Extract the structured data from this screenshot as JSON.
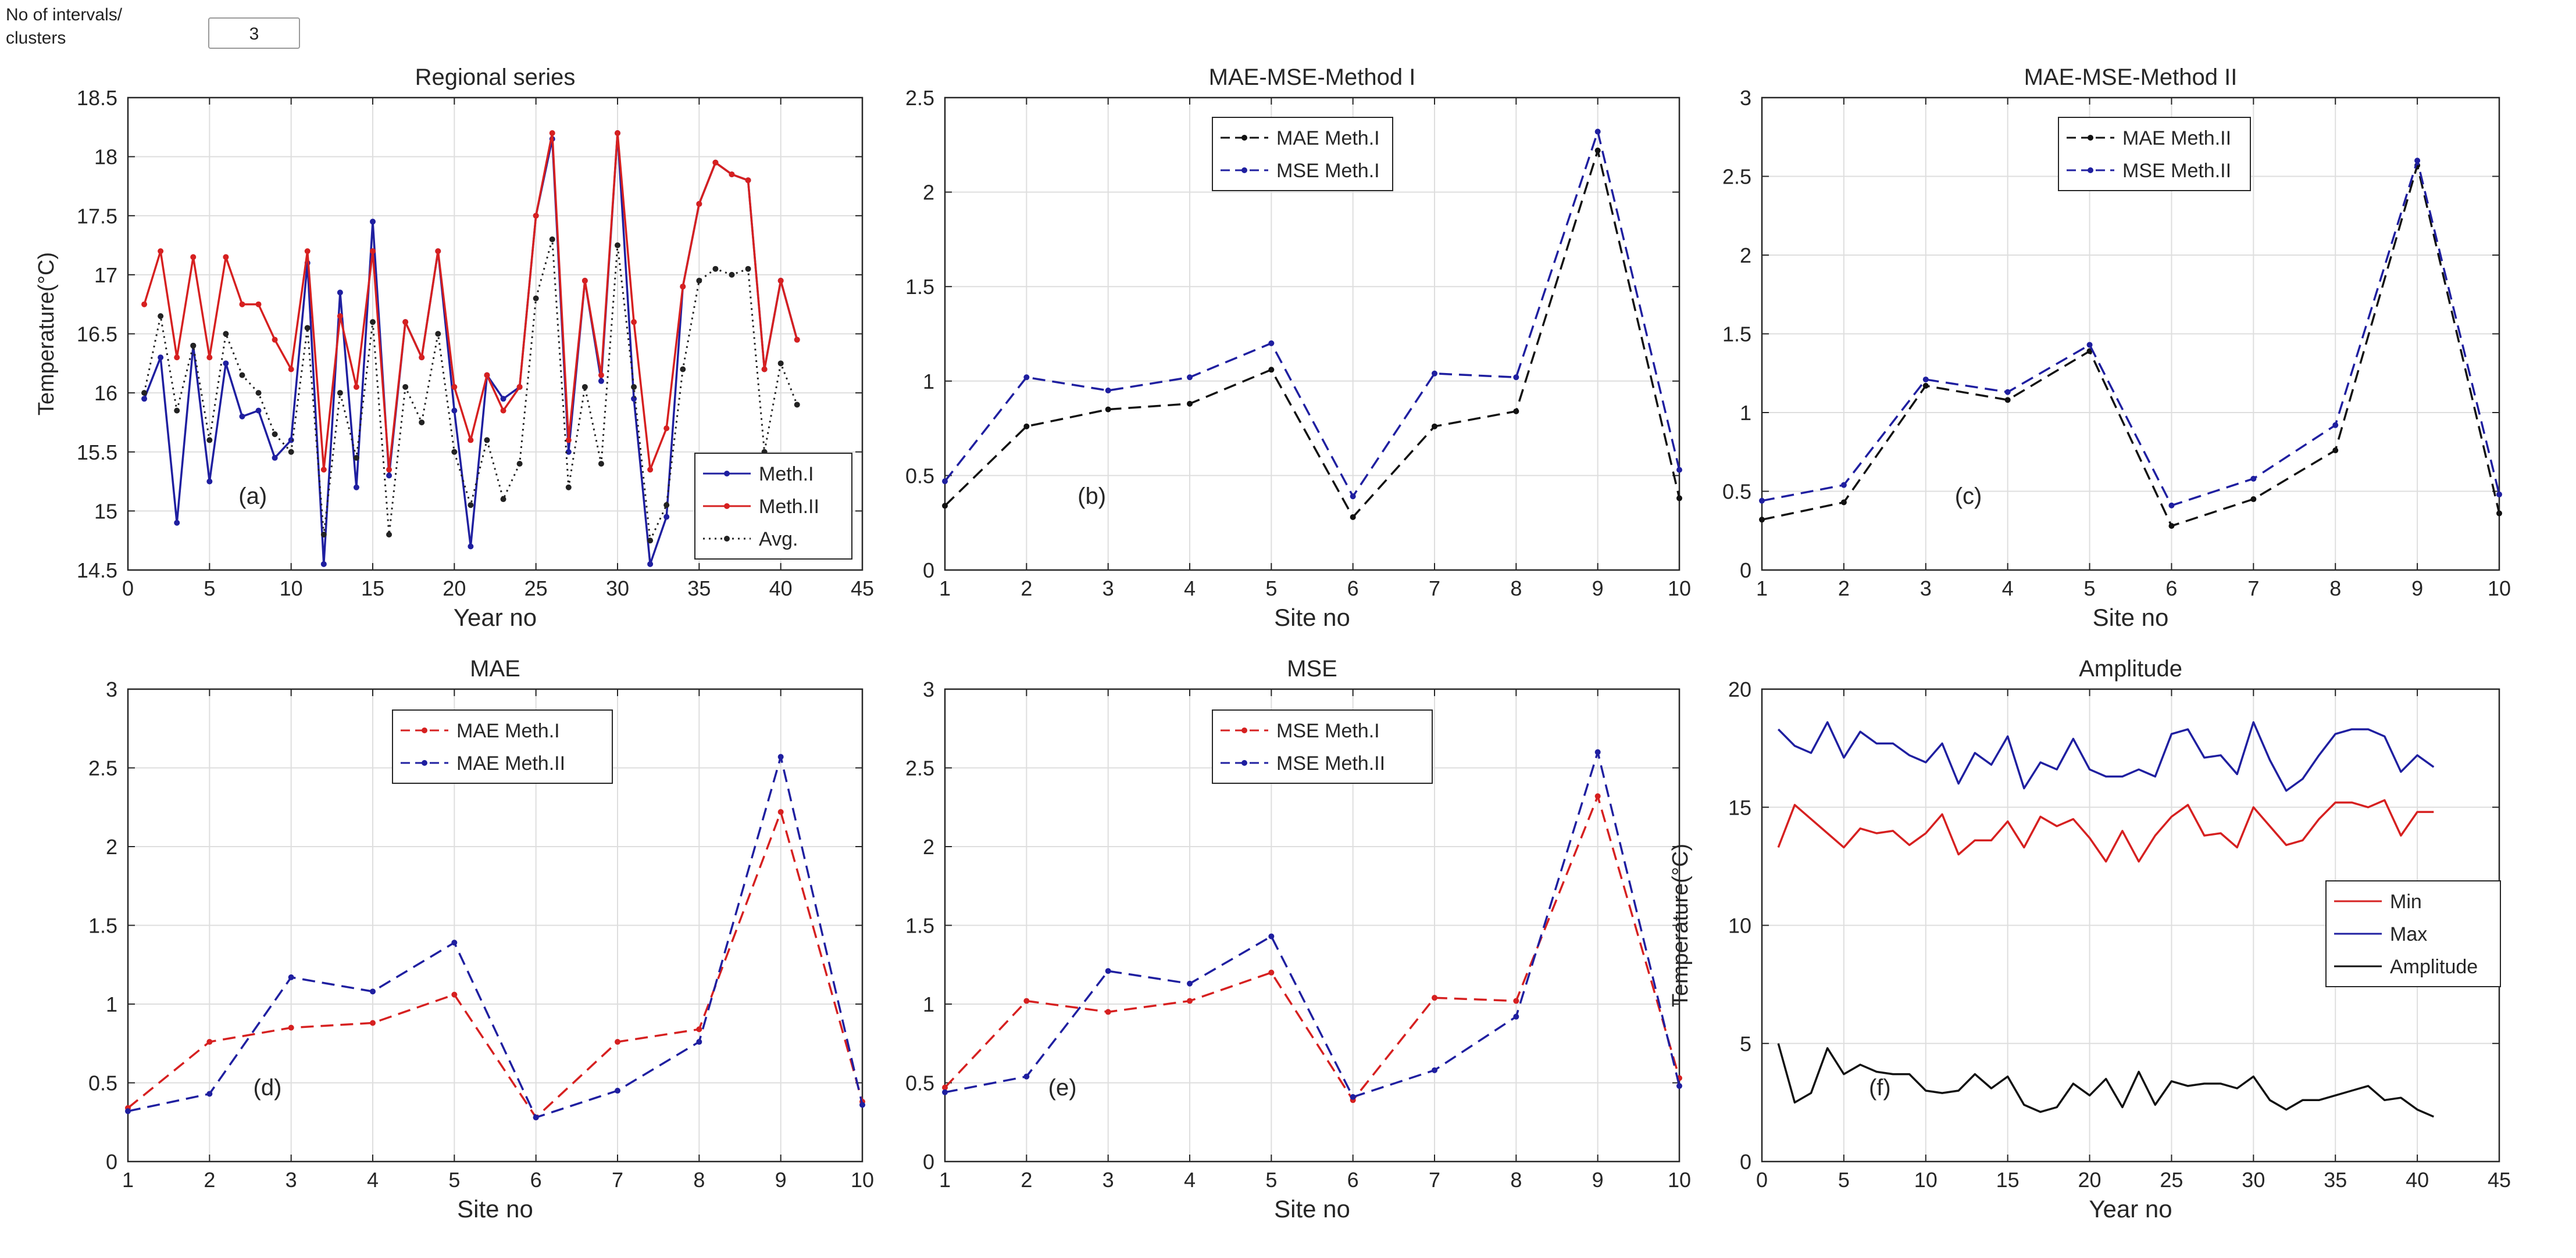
{
  "control": {
    "label": "No of intervals/\nclusters",
    "value": "3"
  },
  "chart_data": [
    {
      "id": "a",
      "type": "line",
      "title": "Regional series",
      "panel_label": "(a)",
      "xlabel": "Year no",
      "ylabel": "Temperature(°C)",
      "xlim": [
        0,
        45
      ],
      "ylim": [
        14.5,
        18.5
      ],
      "xticks": [
        0,
        5,
        10,
        15,
        20,
        25,
        30,
        35,
        40,
        45
      ],
      "yticks": [
        14.5,
        15,
        15.5,
        16,
        16.5,
        17,
        17.5,
        18,
        18.5
      ],
      "legend": {
        "position": "bottom-right",
        "entries": [
          "Meth.I",
          "Meth.II",
          "Avg."
        ]
      },
      "series": [
        {
          "name": "Meth.I",
          "color": "#1f1fa0",
          "dash": "solid",
          "x": [
            1,
            2,
            3,
            4,
            5,
            6,
            7,
            8,
            9,
            10,
            11,
            12,
            13,
            14,
            15,
            16,
            17,
            18,
            19,
            20,
            21,
            22,
            23,
            24,
            25,
            26,
            27,
            28,
            29,
            30,
            31,
            32,
            33,
            34,
            35,
            36,
            37,
            38,
            39,
            40,
            41
          ],
          "values": [
            15.95,
            16.3,
            14.9,
            16.4,
            15.25,
            16.25,
            15.8,
            15.85,
            15.45,
            15.6,
            17.1,
            14.55,
            16.85,
            15.2,
            17.45,
            15.3,
            16.6,
            16.3,
            17.2,
            15.85,
            14.7,
            16.15,
            15.95,
            16.05,
            17.5,
            18.15,
            15.5,
            16.95,
            16.1,
            18.2,
            15.95,
            14.55,
            14.95,
            16.9,
            17.6,
            17.95,
            17.85,
            17.8,
            16.2,
            16.95,
            16.45
          ]
        },
        {
          "name": "Meth.II",
          "color": "#d62020",
          "dash": "solid",
          "x": [
            1,
            2,
            3,
            4,
            5,
            6,
            7,
            8,
            9,
            10,
            11,
            12,
            13,
            14,
            15,
            16,
            17,
            18,
            19,
            20,
            21,
            22,
            23,
            24,
            25,
            26,
            27,
            28,
            29,
            30,
            31,
            32,
            33,
            34,
            35,
            36,
            37,
            38,
            39,
            40,
            41
          ],
          "values": [
            16.75,
            17.2,
            16.3,
            17.15,
            16.3,
            17.15,
            16.75,
            16.75,
            16.45,
            16.2,
            17.2,
            15.35,
            16.65,
            16.05,
            17.2,
            15.35,
            16.6,
            16.3,
            17.2,
            16.05,
            15.6,
            16.15,
            15.85,
            16.05,
            17.5,
            18.2,
            15.6,
            16.95,
            16.15,
            18.2,
            16.6,
            15.35,
            15.7,
            16.9,
            17.6,
            17.95,
            17.85,
            17.8,
            16.2,
            16.95,
            16.45
          ]
        },
        {
          "name": "Avg.",
          "color": "#222222",
          "dash": "dotted",
          "x": [
            1,
            2,
            3,
            4,
            5,
            6,
            7,
            8,
            9,
            10,
            11,
            12,
            13,
            14,
            15,
            16,
            17,
            18,
            19,
            20,
            21,
            22,
            23,
            24,
            25,
            26,
            27,
            28,
            29,
            30,
            31,
            32,
            33,
            34,
            35,
            36,
            37,
            38,
            39,
            40,
            41
          ],
          "values": [
            16.0,
            16.65,
            15.85,
            16.4,
            15.6,
            16.5,
            16.15,
            16.0,
            15.65,
            15.5,
            16.55,
            14.8,
            16.0,
            15.45,
            16.6,
            14.8,
            16.05,
            15.75,
            16.5,
            15.5,
            15.05,
            15.6,
            15.1,
            15.4,
            16.8,
            17.3,
            15.2,
            16.05,
            15.4,
            17.25,
            16.05,
            14.75,
            15.05,
            16.2,
            16.95,
            17.05,
            17.0,
            17.05,
            15.5,
            16.25,
            15.9
          ]
        }
      ]
    },
    {
      "id": "b",
      "type": "line",
      "title": "MAE-MSE-Method I",
      "panel_label": "(b)",
      "xlabel": "Site no",
      "ylabel": "",
      "xlim": [
        1,
        10
      ],
      "ylim": [
        0,
        2.5
      ],
      "xticks": [
        1,
        2,
        3,
        4,
        5,
        6,
        7,
        8,
        9,
        10
      ],
      "yticks": [
        0,
        0.5,
        1,
        1.5,
        2,
        2.5
      ],
      "legend": {
        "position": "top-center",
        "entries": [
          "MAE Meth.I",
          "MSE Meth.I"
        ]
      },
      "series": [
        {
          "name": "MAE Meth.I",
          "color": "#111111",
          "dash": "dashed",
          "x": [
            1,
            2,
            3,
            4,
            5,
            6,
            7,
            8,
            9,
            10
          ],
          "values": [
            0.34,
            0.76,
            0.85,
            0.88,
            1.06,
            0.28,
            0.76,
            0.84,
            2.22,
            0.38
          ]
        },
        {
          "name": "MSE Meth.I",
          "color": "#1f1fa0",
          "dash": "dashed",
          "x": [
            1,
            2,
            3,
            4,
            5,
            6,
            7,
            8,
            9,
            10
          ],
          "values": [
            0.47,
            1.02,
            0.95,
            1.02,
            1.2,
            0.39,
            1.04,
            1.02,
            2.32,
            0.53
          ]
        }
      ]
    },
    {
      "id": "c",
      "type": "line",
      "title": "MAE-MSE-Method II",
      "panel_label": "(c)",
      "xlabel": "Site no",
      "ylabel": "",
      "xlim": [
        1,
        10
      ],
      "ylim": [
        0,
        3
      ],
      "xticks": [
        1,
        2,
        3,
        4,
        5,
        6,
        7,
        8,
        9,
        10
      ],
      "yticks": [
        0,
        0.5,
        1,
        1.5,
        2,
        2.5,
        3
      ],
      "legend": {
        "position": "top-center",
        "entries": [
          "MAE Meth.II",
          "MSE Meth.II"
        ]
      },
      "series": [
        {
          "name": "MAE Meth.II",
          "color": "#111111",
          "dash": "dashed",
          "x": [
            1,
            2,
            3,
            4,
            5,
            6,
            7,
            8,
            9,
            10
          ],
          "values": [
            0.32,
            0.43,
            1.17,
            1.08,
            1.39,
            0.28,
            0.45,
            0.76,
            2.57,
            0.36
          ]
        },
        {
          "name": "MSE Meth.II",
          "color": "#1f1fa0",
          "dash": "dashed",
          "x": [
            1,
            2,
            3,
            4,
            5,
            6,
            7,
            8,
            9,
            10
          ],
          "values": [
            0.44,
            0.54,
            1.21,
            1.13,
            1.43,
            0.41,
            0.58,
            0.92,
            2.6,
            0.48
          ]
        }
      ]
    },
    {
      "id": "d",
      "type": "line",
      "title": "MAE",
      "panel_label": "(d)",
      "xlabel": "Site no",
      "ylabel": "",
      "xlim": [
        1,
        10
      ],
      "ylim": [
        0,
        3
      ],
      "xticks": [
        1,
        2,
        3,
        4,
        5,
        6,
        7,
        8,
        9,
        10
      ],
      "yticks": [
        0,
        0.5,
        1,
        1.5,
        2,
        2.5,
        3
      ],
      "legend": {
        "position": "top-center",
        "entries": [
          "MAE Meth.I",
          "MAE Meth.II"
        ]
      },
      "series": [
        {
          "name": "MAE Meth.I",
          "color": "#d62020",
          "dash": "dashed",
          "x": [
            1,
            2,
            3,
            4,
            5,
            6,
            7,
            8,
            9,
            10
          ],
          "values": [
            0.34,
            0.76,
            0.85,
            0.88,
            1.06,
            0.28,
            0.76,
            0.84,
            2.22,
            0.38
          ]
        },
        {
          "name": "MAE Meth.II",
          "color": "#1f1fa0",
          "dash": "dashed",
          "x": [
            1,
            2,
            3,
            4,
            5,
            6,
            7,
            8,
            9,
            10
          ],
          "values": [
            0.32,
            0.43,
            1.17,
            1.08,
            1.39,
            0.28,
            0.45,
            0.76,
            2.57,
            0.36
          ]
        }
      ]
    },
    {
      "id": "e",
      "type": "line",
      "title": "MSE",
      "panel_label": "(e)",
      "xlabel": "Site no",
      "ylabel": "",
      "xlim": [
        1,
        10
      ],
      "ylim": [
        0,
        3
      ],
      "xticks": [
        1,
        2,
        3,
        4,
        5,
        6,
        7,
        8,
        9,
        10
      ],
      "yticks": [
        0,
        0.5,
        1,
        1.5,
        2,
        2.5,
        3
      ],
      "legend": {
        "position": "top-center",
        "entries": [
          "MSE Meth.I",
          "MSE Meth.II"
        ]
      },
      "series": [
        {
          "name": "MSE Meth.I",
          "color": "#d62020",
          "dash": "dashed",
          "x": [
            1,
            2,
            3,
            4,
            5,
            6,
            7,
            8,
            9,
            10
          ],
          "values": [
            0.47,
            1.02,
            0.95,
            1.02,
            1.2,
            0.39,
            1.04,
            1.02,
            2.32,
            0.53
          ]
        },
        {
          "name": "MSE Meth.II",
          "color": "#1f1fa0",
          "dash": "dashed",
          "x": [
            1,
            2,
            3,
            4,
            5,
            6,
            7,
            8,
            9,
            10
          ],
          "values": [
            0.44,
            0.54,
            1.21,
            1.13,
            1.43,
            0.41,
            0.58,
            0.92,
            2.6,
            0.48
          ]
        }
      ]
    },
    {
      "id": "f",
      "type": "line",
      "title": "Amplitude",
      "panel_label": "(f)",
      "xlabel": "Year no",
      "ylabel": "Temperature(°C)",
      "xlim": [
        0,
        45
      ],
      "ylim": [
        0,
        20
      ],
      "xticks": [
        0,
        5,
        10,
        15,
        20,
        25,
        30,
        35,
        40,
        45
      ],
      "yticks": [
        0,
        5,
        10,
        15,
        20
      ],
      "legend": {
        "position": "right",
        "entries": [
          "Min",
          "Max",
          "Amplitude"
        ]
      },
      "series": [
        {
          "name": "Min",
          "color": "#d62020",
          "dash": "solid",
          "x": [
            1,
            2,
            3,
            4,
            5,
            6,
            7,
            8,
            9,
            10,
            11,
            12,
            13,
            14,
            15,
            16,
            17,
            18,
            19,
            20,
            21,
            22,
            23,
            24,
            25,
            26,
            27,
            28,
            29,
            30,
            31,
            32,
            33,
            34,
            35,
            36,
            37,
            38,
            39,
            40,
            41
          ],
          "values": [
            13.3,
            15.1,
            14.5,
            13.9,
            13.3,
            14.1,
            13.9,
            14.0,
            13.4,
            13.9,
            14.7,
            13.0,
            13.6,
            13.6,
            14.4,
            13.3,
            14.6,
            14.2,
            14.5,
            13.7,
            12.7,
            14.0,
            12.7,
            13.8,
            14.6,
            15.1,
            13.8,
            13.9,
            13.3,
            15.0,
            14.2,
            13.4,
            13.6,
            14.5,
            15.2,
            15.2,
            15.0,
            15.3,
            13.8,
            14.8,
            14.8
          ]
        },
        {
          "name": "Max",
          "color": "#1f1fa0",
          "dash": "solid",
          "x": [
            1,
            2,
            3,
            4,
            5,
            6,
            7,
            8,
            9,
            10,
            11,
            12,
            13,
            14,
            15,
            16,
            17,
            18,
            19,
            20,
            21,
            22,
            23,
            24,
            25,
            26,
            27,
            28,
            29,
            30,
            31,
            32,
            33,
            34,
            35,
            36,
            37,
            38,
            39,
            40,
            41
          ],
          "values": [
            18.3,
            17.6,
            17.3,
            18.6,
            17.1,
            18.2,
            17.7,
            17.7,
            17.2,
            16.9,
            17.7,
            16.0,
            17.3,
            16.8,
            18.0,
            15.8,
            16.9,
            16.6,
            17.9,
            16.6,
            16.3,
            16.3,
            16.6,
            16.3,
            18.1,
            18.3,
            17.1,
            17.2,
            16.4,
            18.6,
            17.0,
            15.7,
            16.2,
            17.2,
            18.1,
            18.3,
            18.3,
            18.0,
            16.5,
            17.2,
            16.7
          ]
        },
        {
          "name": "Amplitude",
          "color": "#111111",
          "dash": "solid",
          "x": [
            1,
            2,
            3,
            4,
            5,
            6,
            7,
            8,
            9,
            10,
            11,
            12,
            13,
            14,
            15,
            16,
            17,
            18,
            19,
            20,
            21,
            22,
            23,
            24,
            25,
            26,
            27,
            28,
            29,
            30,
            31,
            32,
            33,
            34,
            35,
            36,
            37,
            38,
            39,
            40,
            41
          ],
          "values": [
            5.0,
            2.5,
            2.9,
            4.8,
            3.7,
            4.1,
            3.8,
            3.7,
            3.7,
            3.0,
            2.9,
            3.0,
            3.7,
            3.1,
            3.6,
            2.4,
            2.1,
            2.3,
            3.3,
            2.8,
            3.5,
            2.3,
            3.8,
            2.4,
            3.4,
            3.2,
            3.3,
            3.3,
            3.1,
            3.6,
            2.6,
            2.2,
            2.6,
            2.6,
            2.8,
            3.0,
            3.2,
            2.6,
            2.7,
            2.2,
            1.9
          ]
        }
      ]
    }
  ]
}
